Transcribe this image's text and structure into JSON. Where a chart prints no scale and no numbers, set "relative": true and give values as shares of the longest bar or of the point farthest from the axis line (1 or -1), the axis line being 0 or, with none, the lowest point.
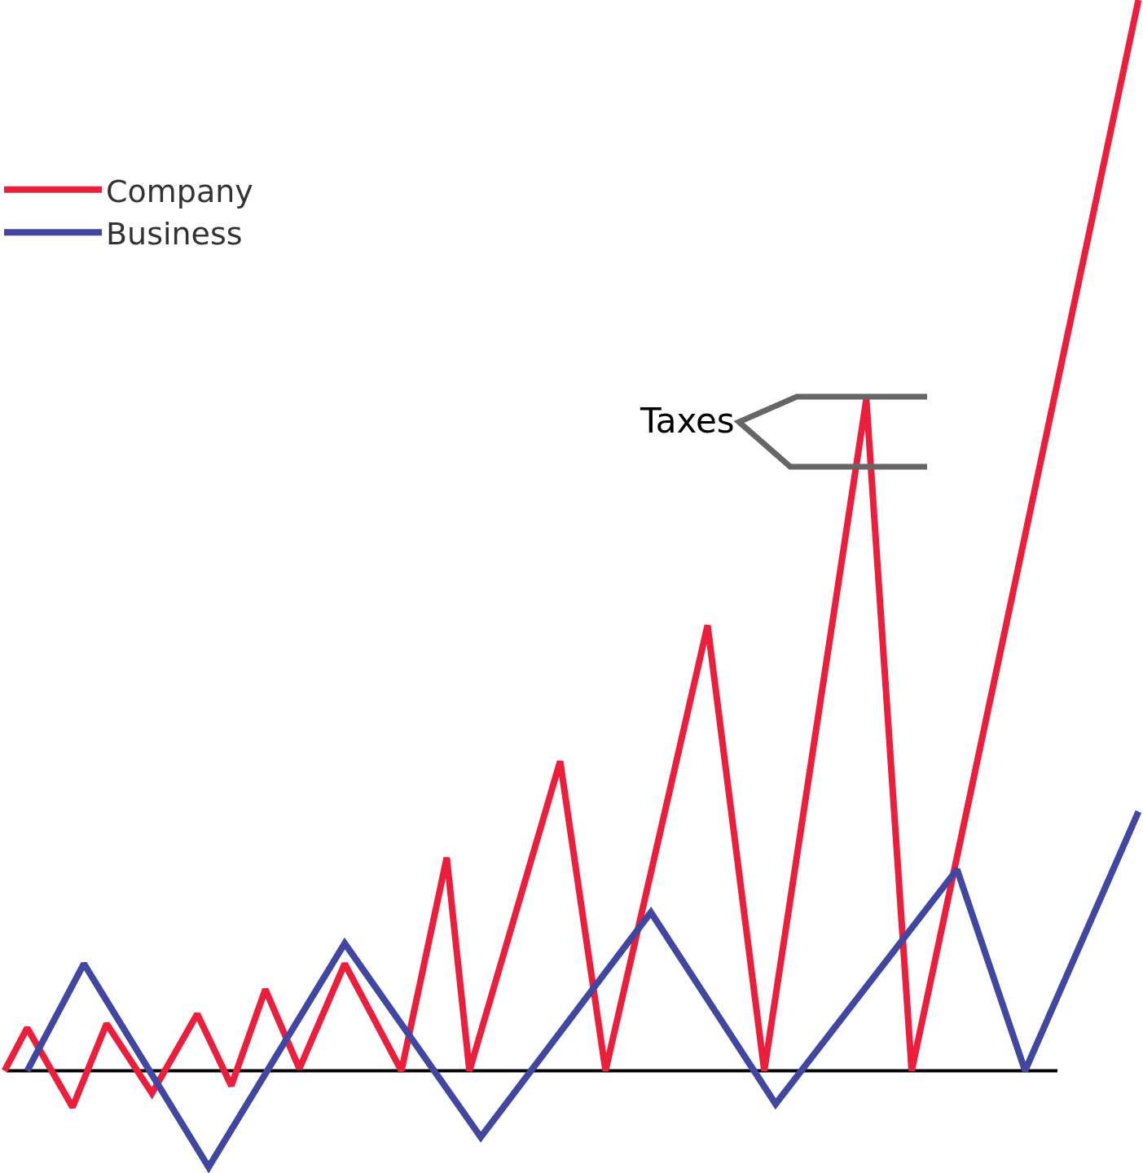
{
  "chart_data": {
    "type": "line",
    "relative": true,
    "legend": "top left",
    "annotations": [
      "Taxes"
    ],
    "categories": [
      null,
      null,
      null,
      null,
      null,
      null,
      null,
      null,
      null,
      null,
      null,
      null,
      null,
      null,
      null,
      null,
      null,
      null,
      null,
      null,
      null,
      null,
      null,
      null,
      null,
      null,
      null,
      null,
      null,
      null,
      null,
      null,
      null,
      null,
      null,
      null,
      null,
      null,
      null,
      null,
      null,
      null,
      null,
      null,
      null,
      null,
      null,
      null,
      null,
      null,
      null,
      null,
      null,
      null,
      null,
      null,
      null,
      null,
      null,
      null,
      null,
      null,
      null,
      null,
      null,
      null,
      null,
      null,
      null,
      null,
      null,
      null,
      null,
      null,
      null,
      null,
      null,
      null,
      null,
      null,
      null,
      null,
      null,
      null,
      null,
      null,
      null,
      null,
      null,
      null,
      null,
      null,
      null,
      null,
      null,
      null,
      null,
      null,
      null,
      null,
      null
    ],
    "series": [
      {
        "name": "Company",
        "color": "#ec1e3c",
        "values": [
          0,
          null,
          0.04,
          null,
          null,
          null,
          -0.034,
          null,
          null,
          0.044,
          null,
          null,
          null,
          -0.021,
          null,
          null,
          null,
          0.053,
          null,
          null,
          -0.014,
          null,
          null,
          0.076,
          null,
          null,
          0.002,
          null,
          null,
          null,
          0.1,
          null,
          null,
          null,
          null,
          0,
          null,
          null,
          null,
          0.199,
          null,
          0,
          null,
          null,
          null,
          null,
          null,
          null,
          null,
          0.289,
          null,
          null,
          null,
          0,
          null,
          null,
          null,
          null,
          null,
          null,
          null,
          null,
          0.416,
          null,
          null,
          null,
          null,
          0,
          null,
          null,
          null,
          null,
          null,
          null,
          null,
          null,
          0.627,
          null,
          null,
          null,
          0,
          null,
          null,
          null,
          null,
          null,
          null,
          null,
          null,
          null,
          null,
          null,
          null,
          null,
          null,
          null,
          null,
          null,
          null,
          null,
          1
        ]
      },
      {
        "name": "Business",
        "color": "#4146a0",
        "values": [
          null,
          null,
          0,
          null,
          null,
          null,
          null,
          0.1,
          null,
          null,
          null,
          null,
          null,
          null,
          null,
          null,
          null,
          null,
          -0.09,
          null,
          null,
          null,
          null,
          null,
          null,
          null,
          null,
          null,
          null,
          null,
          0.119,
          null,
          null,
          null,
          null,
          null,
          null,
          null,
          null,
          null,
          null,
          null,
          -0.062,
          null,
          null,
          null,
          null,
          null,
          null,
          null,
          null,
          null,
          null,
          null,
          null,
          null,
          null,
          0.148,
          null,
          null,
          null,
          null,
          null,
          null,
          null,
          null,
          null,
          null,
          -0.031,
          null,
          null,
          null,
          null,
          null,
          null,
          null,
          null,
          null,
          null,
          null,
          null,
          null,
          null,
          null,
          0.188,
          null,
          null,
          null,
          null,
          null,
          0,
          null,
          null,
          null,
          null,
          null,
          null,
          null,
          null,
          null,
          0.242
        ]
      }
    ]
  }
}
